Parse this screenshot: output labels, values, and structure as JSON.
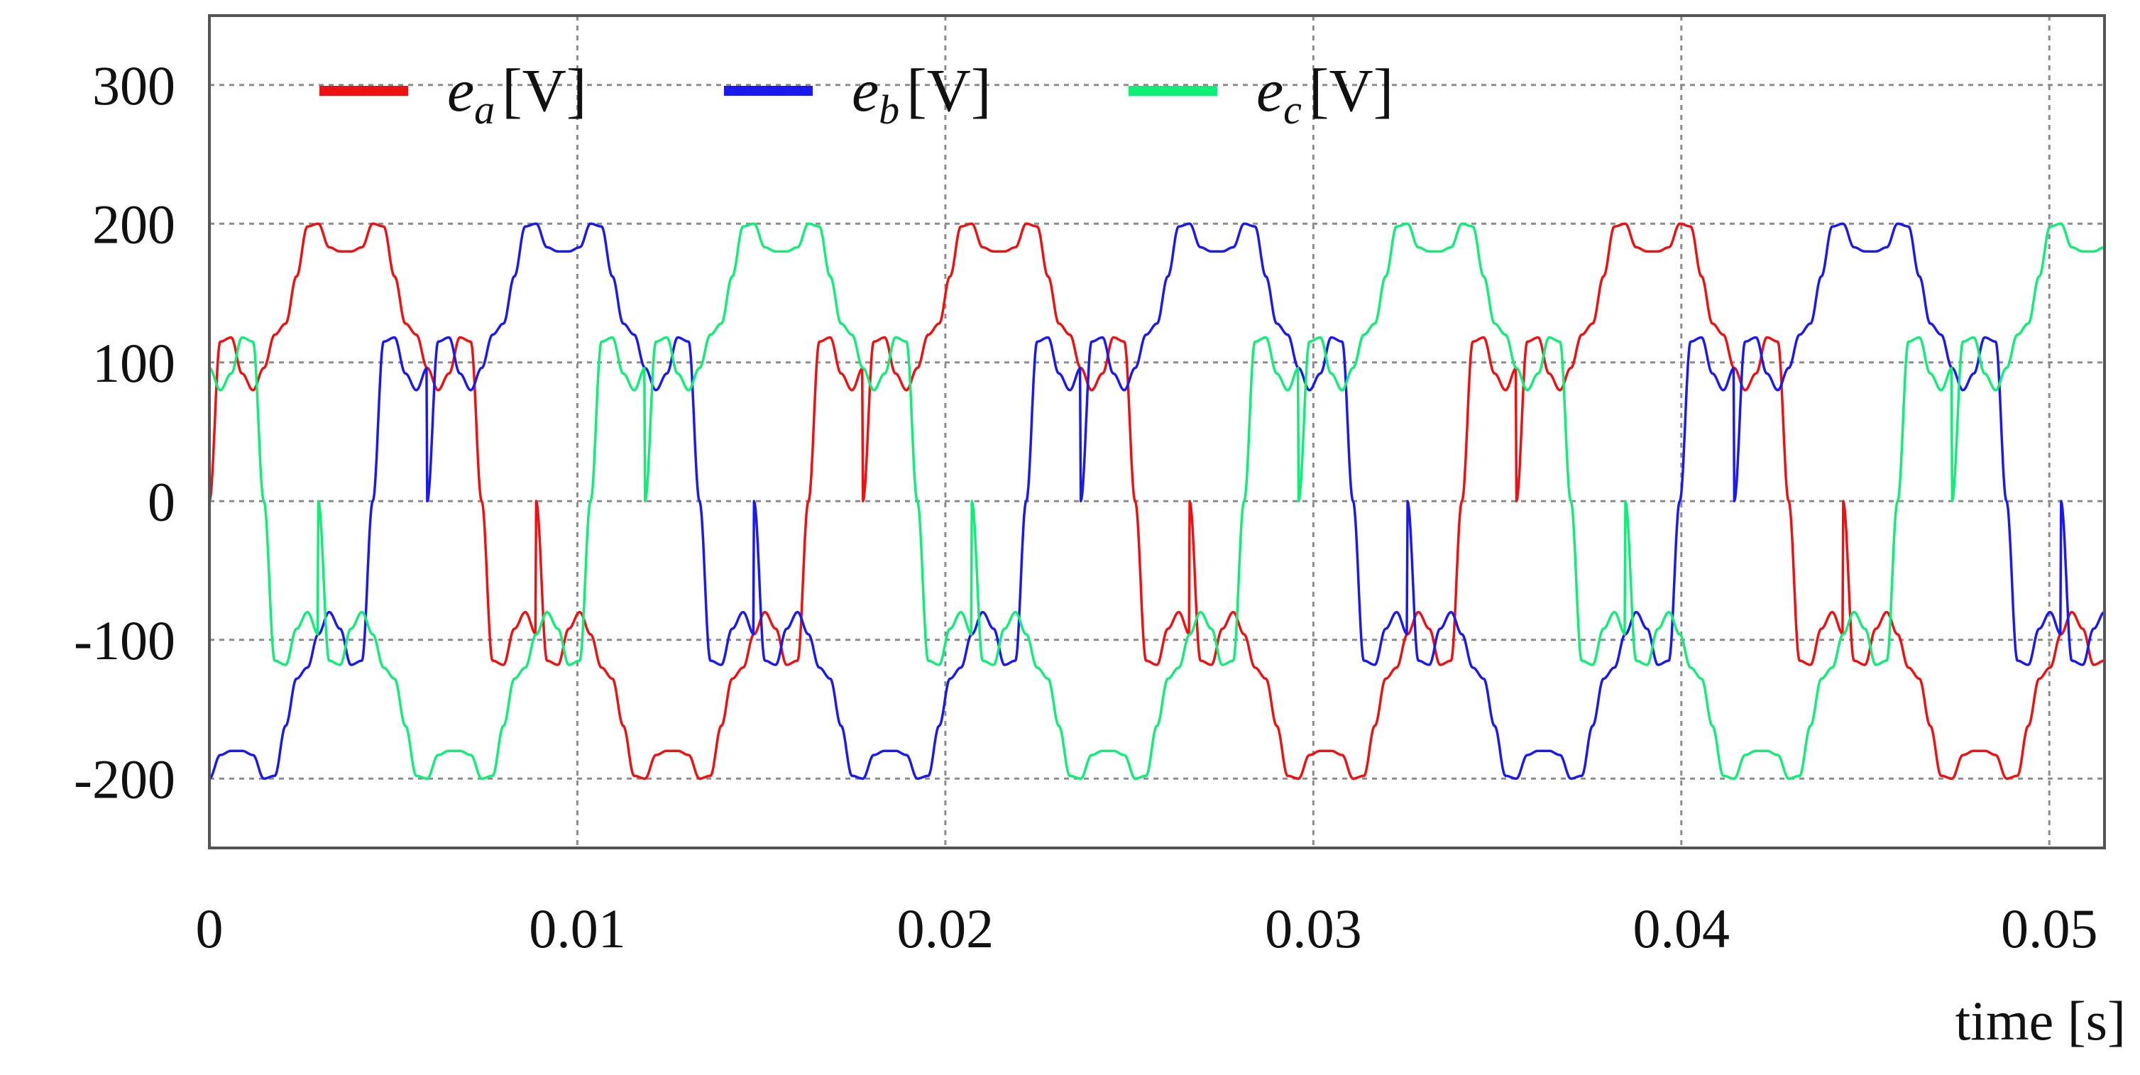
{
  "chart_data": {
    "type": "line",
    "title": "",
    "xlabel": "time [s]",
    "ylabel": "",
    "xlim": [
      0,
      0.0515
    ],
    "ylim": [
      -250,
      350
    ],
    "grid": true,
    "legend_position": "top-left",
    "x_ticks": [
      0,
      0.01,
      0.02,
      0.03,
      0.04,
      0.05
    ],
    "x_tick_labels": [
      "0",
      "0.01",
      "0.02",
      "0.03",
      "0.04",
      "0.05"
    ],
    "y_ticks": [
      300,
      200,
      100,
      0,
      -100,
      -200
    ],
    "y_tick_labels": [
      "300",
      "200",
      "100",
      "0",
      "-100",
      "-200"
    ],
    "waveform": {
      "sample_step": 2e-05,
      "phase_shift_deg": 120,
      "cycles_in_view": 2.9,
      "angle_samples_deg": [
        0,
        6,
        12,
        18,
        24,
        30,
        36,
        42,
        48,
        54,
        60,
        66,
        72,
        78,
        84,
        90,
        96,
        102,
        108,
        114,
        120,
        126,
        132,
        138,
        144,
        150,
        156,
        162,
        168,
        174,
        180
      ],
      "angle_sample_values": [
        0,
        115,
        118,
        92,
        80,
        96,
        120,
        128,
        162,
        198,
        200,
        183,
        180,
        180,
        183,
        200,
        198,
        162,
        128,
        120,
        96,
        80,
        92,
        118,
        115,
        0,
        -115,
        -118,
        -92,
        -80,
        -96
      ]
    },
    "series": [
      {
        "name": "e_a [V]",
        "symbol": "e",
        "subscript": "a",
        "unit": "[V]",
        "color": "#ee1111",
        "phase_deg": 0
      },
      {
        "name": "e_b [V]",
        "symbol": "e",
        "subscript": "b",
        "unit": "[V]",
        "color": "#1a1aee",
        "phase_deg": -120
      },
      {
        "name": "e_c [V]",
        "symbol": "e",
        "subscript": "c",
        "unit": "[V]",
        "color": "#11ee77",
        "phase_deg": 120
      }
    ]
  }
}
